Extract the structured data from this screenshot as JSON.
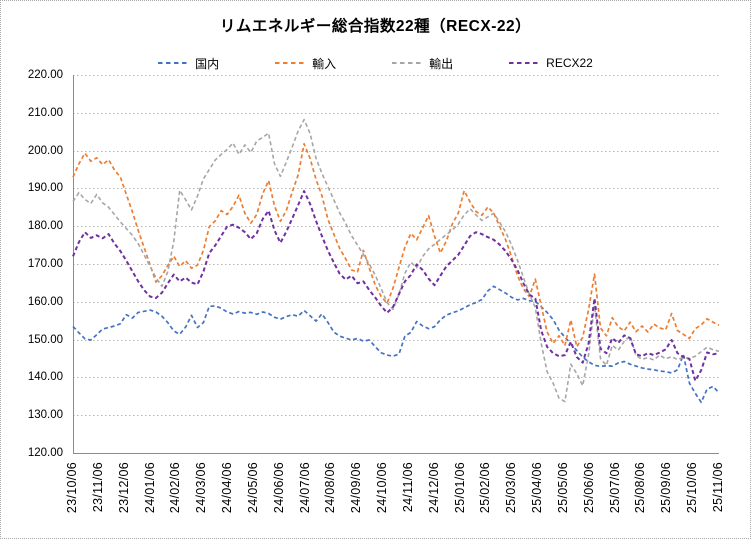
{
  "title": "リムエネルギー総合指数22種（RECX-22）",
  "legend": {
    "items": [
      {
        "label": "国内",
        "color": "#4472C4"
      },
      {
        "label": "輸入",
        "color": "#ED7D31"
      },
      {
        "label": "輸出",
        "color": "#A6A6A6"
      },
      {
        "label": "RECX22",
        "color": "#7030A0"
      }
    ]
  },
  "axes": {
    "y": {
      "tick_labels": [
        "220.00",
        "210.00",
        "200.00",
        "190.00",
        "180.00",
        "170.00",
        "160.00",
        "150.00",
        "140.00",
        "130.00",
        "120.00"
      ]
    },
    "x": {
      "tick_labels": [
        "23/10/06",
        "23/11/06",
        "23/12/06",
        "24/01/06",
        "24/02/06",
        "24/03/06",
        "24/04/06",
        "24/05/06",
        "24/06/06",
        "24/07/06",
        "24/08/06",
        "24/09/06",
        "24/10/06",
        "24/11/06",
        "24/12/06",
        "25/01/06",
        "25/02/06",
        "25/03/06",
        "25/04/06",
        "25/05/06",
        "25/06/06",
        "25/07/06",
        "25/08/06",
        "25/09/06",
        "25/10/06",
        "25/11/06"
      ]
    }
  },
  "chart_data": {
    "type": "line",
    "title": "リムエネルギー総合指数22種（RECX-22）",
    "line_style": "dashed",
    "grid": true,
    "legend_position": "top",
    "ylim": [
      120,
      220
    ],
    "y_tick_step": 10,
    "x_range": [
      "23/10/06",
      "25/11/06"
    ],
    "x_sampling": "approx. weekly (110 samples, evenly spaced)",
    "x_tick_labels": [
      "23/10/06",
      "23/11/06",
      "23/12/06",
      "24/01/06",
      "24/02/06",
      "24/03/06",
      "24/04/06",
      "24/05/06",
      "24/06/06",
      "24/07/06",
      "24/08/06",
      "24/09/06",
      "24/10/06",
      "24/11/06",
      "24/12/06",
      "25/01/06",
      "25/02/06",
      "25/03/06",
      "25/04/06",
      "25/05/06",
      "25/06/06",
      "25/07/06",
      "25/08/06",
      "25/09/06",
      "25/10/06",
      "25/11/06"
    ],
    "series": [
      {
        "name": "国内",
        "color": "#4472C4",
        "values": [
          153.5,
          151.8,
          150.2,
          149.9,
          151.3,
          152.8,
          153.2,
          153.6,
          154.2,
          156.6,
          155.7,
          157.2,
          157.5,
          157.8,
          157.3,
          156.2,
          154.5,
          152.3,
          151.4,
          153.3,
          156.4,
          153.2,
          154.5,
          158.8,
          158.9,
          158.3,
          157.3,
          156.8,
          157.4,
          157.0,
          157.2,
          156.7,
          157.3,
          156.9,
          155.9,
          155.4,
          156.1,
          156.6,
          156.2,
          157.7,
          156.3,
          154.9,
          156.8,
          154.6,
          152.0,
          150.9,
          150.4,
          149.9,
          150.3,
          149.6,
          149.9,
          148.1,
          146.5,
          145.9,
          145.6,
          146.2,
          150.9,
          151.9,
          154.8,
          153.6,
          152.9,
          153.4,
          155.2,
          156.5,
          157.1,
          157.6,
          158.4,
          159.2,
          159.8,
          160.6,
          162.9,
          164.1,
          163.2,
          162.3,
          161.2,
          160.5,
          160.9,
          160.3,
          160.1,
          158.7,
          157.2,
          155.3,
          152.5,
          150.6,
          149.0,
          147.1,
          145.4,
          144.1,
          143.2,
          142.9,
          143.1,
          143.0,
          143.8,
          144.2,
          143.5,
          143.0,
          142.5,
          142.2,
          142.0,
          141.7,
          141.5,
          141.2,
          142.0,
          146.0,
          138.5,
          135.8,
          133.4,
          136.9,
          137.6,
          135.9
        ]
      },
      {
        "name": "輸入",
        "color": "#ED7D31",
        "values": [
          193.0,
          196.5,
          199.3,
          197.2,
          198.1,
          196.3,
          197.6,
          194.9,
          193.0,
          188.4,
          183.9,
          178.9,
          174.4,
          169.8,
          165.2,
          166.9,
          169.6,
          172.1,
          169.3,
          170.9,
          168.9,
          169.7,
          173.6,
          179.9,
          181.4,
          184.1,
          183.1,
          185.2,
          188.2,
          183.4,
          180.8,
          183.1,
          188.6,
          192.1,
          185.4,
          181.3,
          184.2,
          189.1,
          193.6,
          201.8,
          197.9,
          192.4,
          188.1,
          181.9,
          177.9,
          174.1,
          171.4,
          168.4,
          167.9,
          173.6,
          168.9,
          164.4,
          161.4,
          159.6,
          163.6,
          169.1,
          174.4,
          178.1,
          176.4,
          179.6,
          182.8,
          177.4,
          172.9,
          176.1,
          180.6,
          183.4,
          189.4,
          186.4,
          183.9,
          182.9,
          185.1,
          183.4,
          179.9,
          176.4,
          171.9,
          166.9,
          163.4,
          161.4,
          166.0,
          159.0,
          152.0,
          149.0,
          151.0,
          148.4,
          155.2,
          148.1,
          150.6,
          158.0,
          167.3,
          153.1,
          151.0,
          155.8,
          153.4,
          152.3,
          154.6,
          152.1,
          153.6,
          152.0,
          154.1,
          153.1,
          152.6,
          156.9,
          152.4,
          151.4,
          150.3,
          152.9,
          153.9,
          155.5,
          154.6,
          153.8
        ]
      },
      {
        "name": "輸出",
        "color": "#A6A6A6",
        "values": [
          186.5,
          188.9,
          187.1,
          186.0,
          188.4,
          186.2,
          185.0,
          183.1,
          181.1,
          179.4,
          177.6,
          175.4,
          172.4,
          169.4,
          166.4,
          164.1,
          168.0,
          176.0,
          189.5,
          187.0,
          184.3,
          188.0,
          192.5,
          195.0,
          197.5,
          199.0,
          200.3,
          202.0,
          199.0,
          201.5,
          199.5,
          202.5,
          203.5,
          204.6,
          196.5,
          193.2,
          197.0,
          201.0,
          205.2,
          208.2,
          204.5,
          198.0,
          194.0,
          190.5,
          187.0,
          183.5,
          180.8,
          177.5,
          175.0,
          172.5,
          170.0,
          167.0,
          163.5,
          159.8,
          158.0,
          162.0,
          167.5,
          170.5,
          169.0,
          172.0,
          174.0,
          175.2,
          176.5,
          177.8,
          179.0,
          180.5,
          183.0,
          184.6,
          183.0,
          181.5,
          182.5,
          183.4,
          181.0,
          178.5,
          175.0,
          171.0,
          166.5,
          162.0,
          158.5,
          149.0,
          141.5,
          138.5,
          134.5,
          133.6,
          143.5,
          141.0,
          137.8,
          146.0,
          159.0,
          145.0,
          143.2,
          148.5,
          147.2,
          149.5,
          151.0,
          145.8,
          144.8,
          145.2,
          144.6,
          145.9,
          144.9,
          145.5,
          144.7,
          145.3,
          145.0,
          145.6,
          146.8,
          148.0,
          147.3,
          146.9
        ]
      },
      {
        "name": "RECX22",
        "color": "#7030A0",
        "values": [
          172.0,
          175.8,
          178.4,
          176.9,
          177.6,
          176.8,
          177.9,
          175.4,
          173.4,
          170.9,
          168.1,
          165.4,
          163.1,
          161.4,
          161.0,
          162.4,
          164.9,
          167.2,
          165.4,
          166.4,
          165.1,
          164.6,
          168.0,
          172.9,
          174.9,
          177.4,
          179.9,
          180.4,
          179.6,
          178.4,
          176.6,
          178.1,
          181.9,
          184.1,
          178.9,
          175.6,
          178.6,
          182.1,
          185.6,
          189.3,
          185.9,
          181.4,
          177.4,
          173.6,
          170.4,
          167.4,
          165.9,
          166.9,
          164.9,
          165.4,
          163.1,
          161.1,
          158.9,
          157.1,
          158.6,
          162.1,
          165.4,
          167.1,
          169.9,
          168.4,
          166.1,
          164.4,
          166.9,
          169.4,
          170.9,
          172.4,
          174.9,
          177.4,
          178.4,
          177.9,
          177.1,
          176.4,
          175.1,
          173.4,
          171.1,
          168.4,
          164.9,
          161.9,
          160.9,
          152.4,
          148.1,
          146.4,
          145.6,
          145.9,
          149.4,
          145.4,
          143.9,
          149.0,
          160.9,
          147.6,
          146.4,
          150.4,
          149.1,
          151.1,
          150.4,
          146.1,
          145.6,
          146.4,
          145.9,
          146.6,
          147.4,
          149.9,
          146.4,
          145.4,
          144.9,
          139.1,
          141.9,
          146.6,
          146.1,
          146.4
        ]
      }
    ]
  }
}
